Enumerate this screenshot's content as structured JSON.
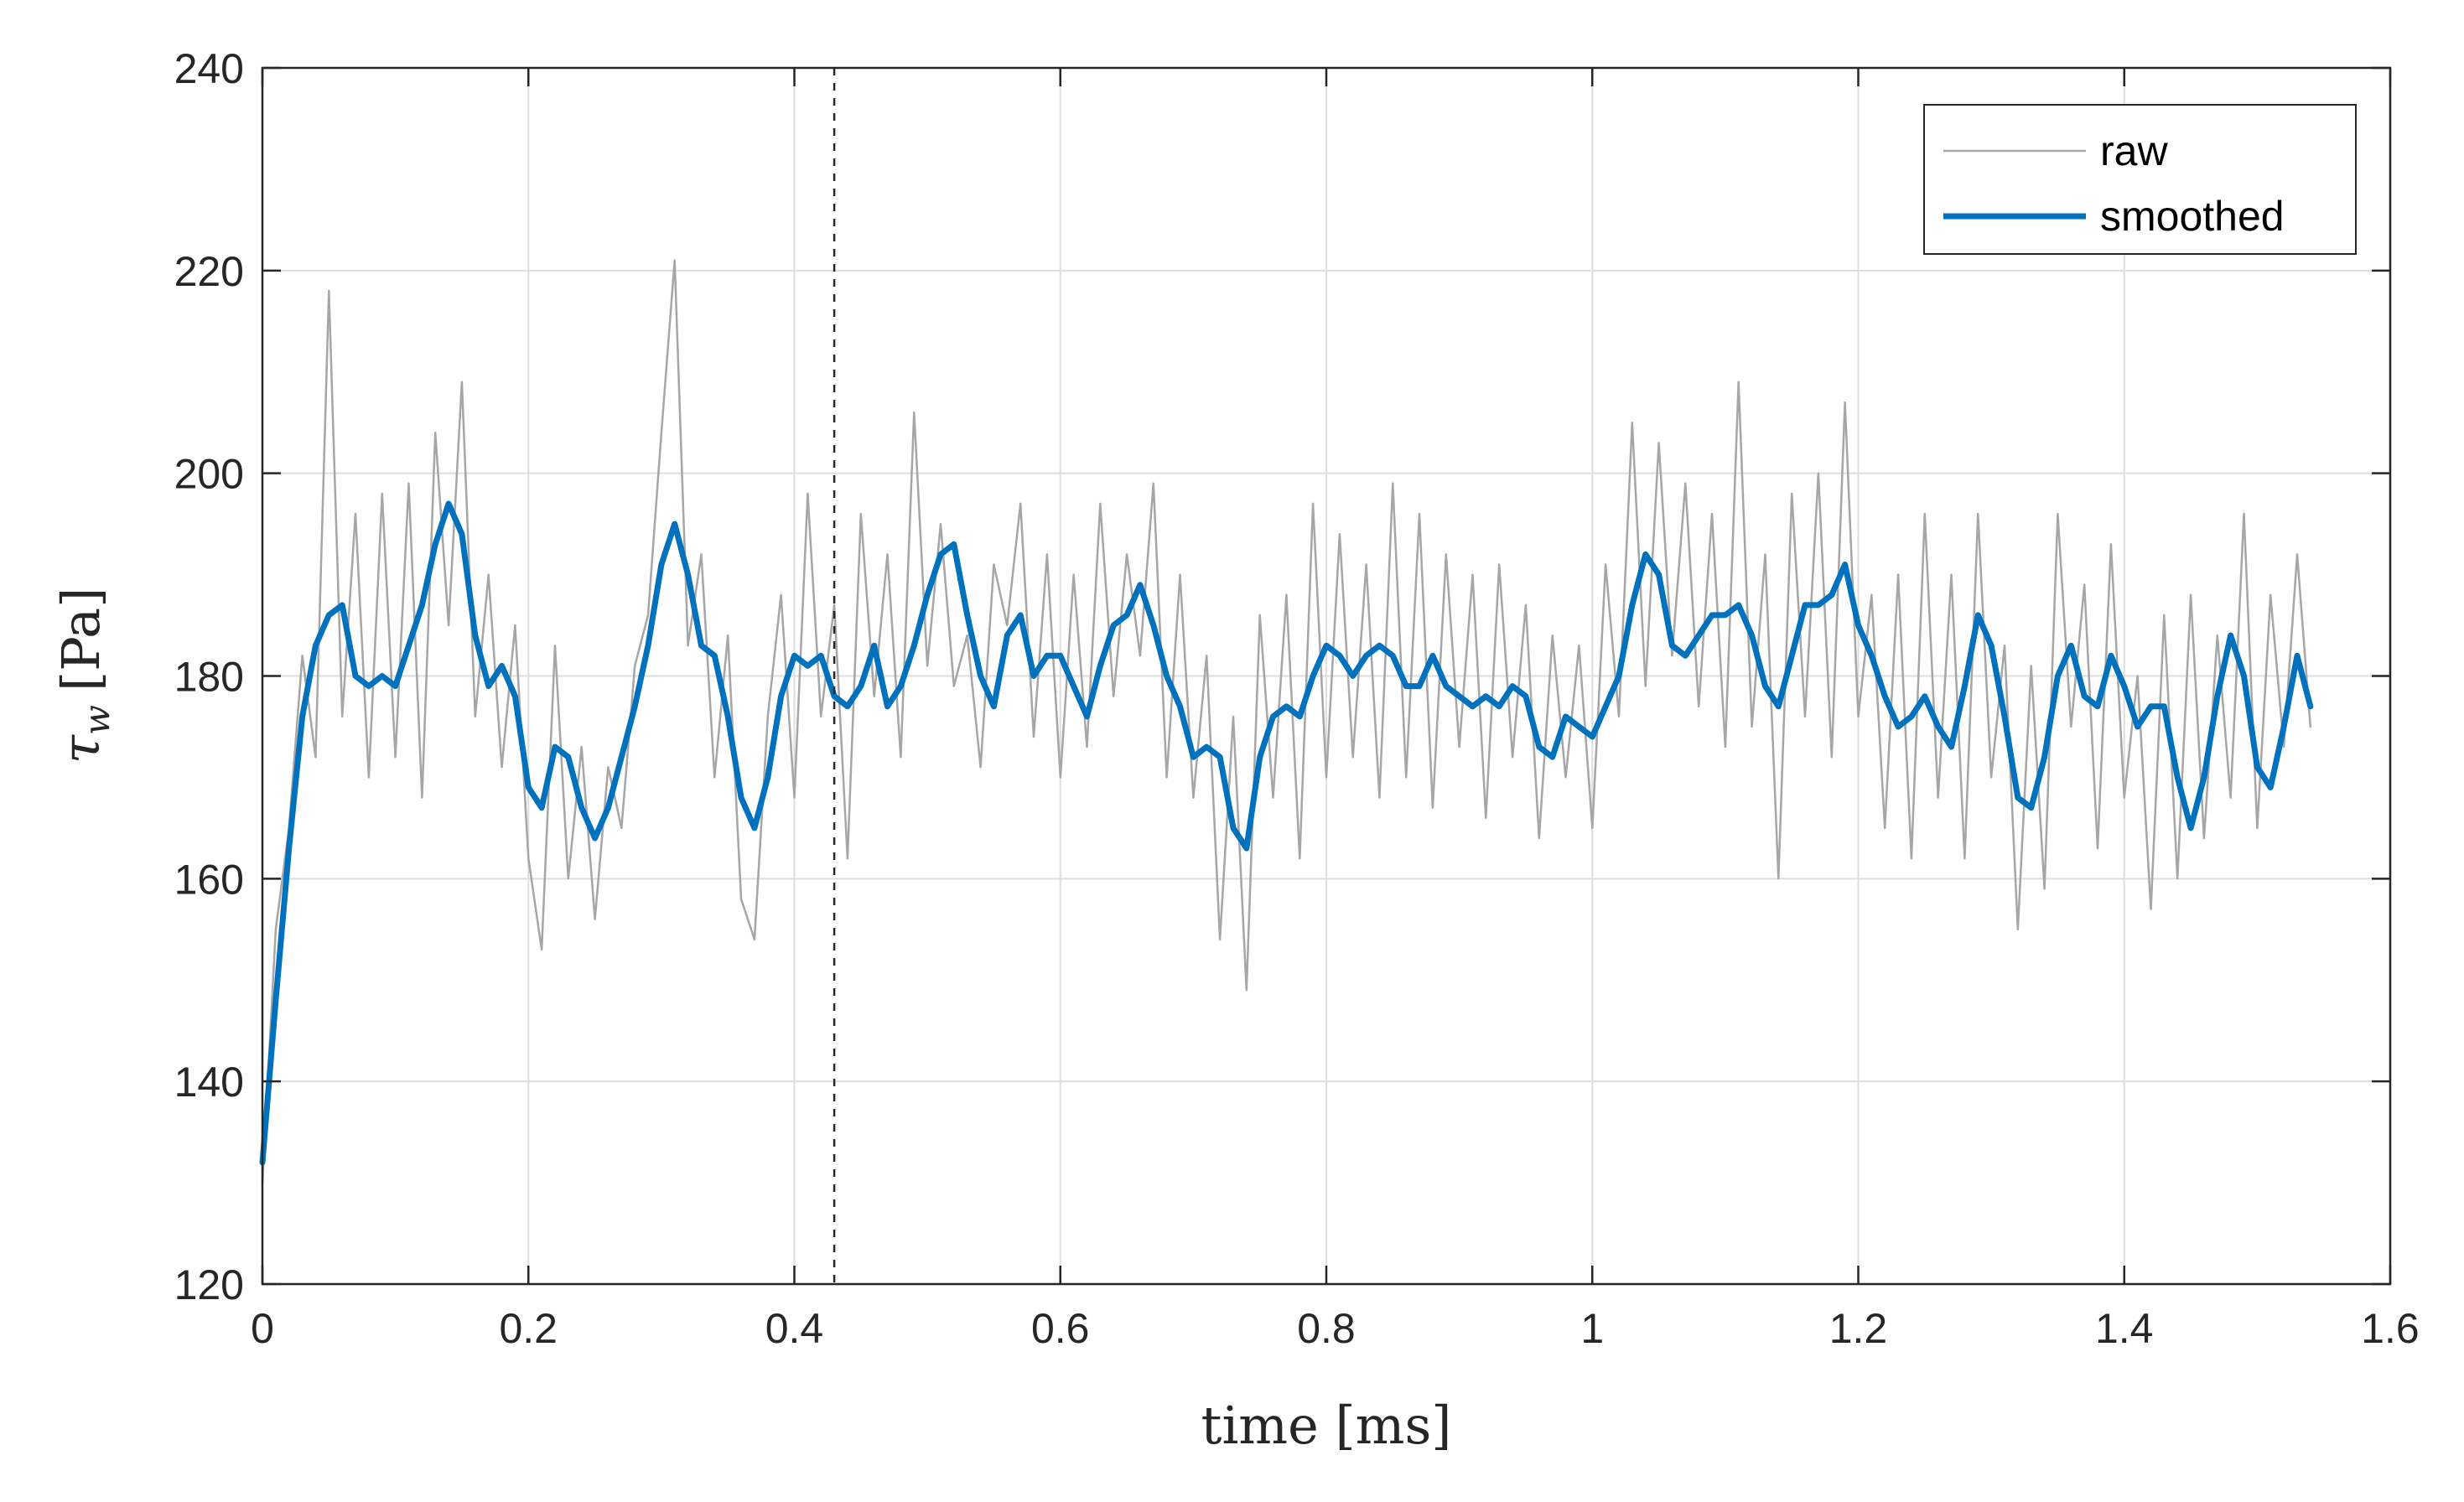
{
  "chart_data": {
    "type": "line",
    "xlabel": "time [ms]",
    "ylabel": "τ_w [Pa]",
    "ylabel_symbol": "τ",
    "ylabel_subscript": "w",
    "ylabel_unit": "[Pa]",
    "xlim": [
      0,
      1.6
    ],
    "ylim": [
      120,
      240
    ],
    "xticks": [
      0,
      0.2,
      0.4,
      0.6,
      0.8,
      1,
      1.2,
      1.4,
      1.6
    ],
    "xtick_labels": [
      "0",
      "0.2",
      "0.4",
      "0.6",
      "0.8",
      "1",
      "1.2",
      "1.4",
      "1.6"
    ],
    "yticks": [
      120,
      140,
      160,
      180,
      200,
      220,
      240
    ],
    "ytick_labels": [
      "120",
      "140",
      "160",
      "180",
      "200",
      "220",
      "240"
    ],
    "grid": true,
    "legend_position": "top-right",
    "vertical_marker": {
      "x": 0.43,
      "style": "dashed"
    },
    "colors": {
      "raw": "#a6a6a6",
      "smoothed": "#0072bd",
      "axes": "#262626",
      "grid": "#dedede"
    },
    "series": [
      {
        "name": "smoothed",
        "x": [
          0,
          0.01,
          0.02,
          0.03,
          0.04,
          0.05,
          0.06,
          0.07,
          0.08,
          0.09,
          0.1,
          0.11,
          0.12,
          0.13,
          0.14,
          0.15,
          0.16,
          0.17,
          0.18,
          0.19,
          0.2,
          0.21,
          0.22,
          0.23,
          0.24,
          0.25,
          0.26,
          0.27,
          0.28,
          0.29,
          0.3,
          0.31,
          0.32,
          0.33,
          0.34,
          0.35,
          0.36,
          0.37,
          0.38,
          0.39,
          0.4,
          0.41,
          0.42,
          0.43,
          0.44,
          0.45,
          0.46,
          0.47,
          0.48,
          0.49,
          0.5,
          0.51,
          0.52,
          0.53,
          0.54,
          0.55,
          0.56,
          0.57,
          0.58,
          0.59,
          0.6,
          0.61,
          0.62,
          0.63,
          0.64,
          0.65,
          0.66,
          0.67,
          0.68,
          0.69,
          0.7,
          0.71,
          0.72,
          0.73,
          0.74,
          0.75,
          0.76,
          0.77,
          0.78,
          0.79,
          0.8,
          0.81,
          0.82,
          0.83,
          0.84,
          0.85,
          0.86,
          0.87,
          0.88,
          0.89,
          0.9,
          0.91,
          0.92,
          0.93,
          0.94,
          0.95,
          0.96,
          0.97,
          0.98,
          0.99,
          1,
          1.01,
          1.02,
          1.03,
          1.04,
          1.05,
          1.06,
          1.07,
          1.08,
          1.09,
          1.1,
          1.11,
          1.12,
          1.13,
          1.14,
          1.15,
          1.16,
          1.17,
          1.18,
          1.19,
          1.2,
          1.21,
          1.22,
          1.23,
          1.24,
          1.25,
          1.26,
          1.27,
          1.28,
          1.29,
          1.3,
          1.31,
          1.32,
          1.33,
          1.34,
          1.35,
          1.36,
          1.37,
          1.38,
          1.39,
          1.4,
          1.41,
          1.42,
          1.43,
          1.44,
          1.45,
          1.46,
          1.47,
          1.48,
          1.49,
          1.5,
          1.51,
          1.52,
          1.53,
          1.54
        ],
        "values": [
          132,
          148,
          163,
          176,
          183,
          186,
          187,
          180,
          179,
          180,
          179,
          183,
          187,
          193,
          197,
          194,
          184,
          179,
          181,
          178,
          169,
          167,
          173,
          172,
          167,
          164,
          167,
          172,
          177,
          183,
          191,
          195,
          190,
          183,
          182,
          176,
          168,
          165,
          170,
          178,
          182,
          181,
          182,
          178,
          177,
          179,
          183,
          177,
          179,
          183,
          188,
          192,
          193,
          186,
          180,
          177,
          184,
          186,
          180,
          182,
          182,
          179,
          176,
          181,
          185,
          186,
          189,
          185,
          180,
          177,
          172,
          173,
          172,
          165,
          163,
          172,
          176,
          177,
          176,
          180,
          183,
          182,
          180,
          182,
          183,
          182,
          179,
          179,
          182,
          179,
          178,
          177,
          178,
          177,
          179,
          178,
          173,
          172,
          176,
          175,
          174,
          177,
          180,
          187,
          192,
          190,
          183,
          182,
          184,
          186,
          186,
          187,
          184,
          179,
          177,
          182,
          187,
          187,
          188,
          191,
          185,
          182,
          178,
          175,
          176,
          178,
          175,
          173,
          179,
          186,
          183,
          176,
          168,
          167,
          172,
          180,
          183,
          178,
          177,
          182,
          179,
          175,
          177,
          177,
          170,
          165,
          170,
          178,
          184,
          180,
          171,
          169,
          175,
          182,
          177
        ]
      },
      {
        "name": "raw",
        "x": [
          0,
          0.01,
          0.02,
          0.03,
          0.04,
          0.05,
          0.06,
          0.07,
          0.08,
          0.09,
          0.1,
          0.11,
          0.12,
          0.13,
          0.14,
          0.15,
          0.16,
          0.17,
          0.18,
          0.19,
          0.2,
          0.21,
          0.22,
          0.23,
          0.24,
          0.25,
          0.26,
          0.27,
          0.28,
          0.29,
          0.3,
          0.31,
          0.32,
          0.33,
          0.34,
          0.35,
          0.36,
          0.37,
          0.38,
          0.39,
          0.4,
          0.41,
          0.42,
          0.43,
          0.44,
          0.45,
          0.46,
          0.47,
          0.48,
          0.49,
          0.5,
          0.51,
          0.52,
          0.53,
          0.54,
          0.55,
          0.56,
          0.57,
          0.58,
          0.59,
          0.6,
          0.61,
          0.62,
          0.63,
          0.64,
          0.65,
          0.66,
          0.67,
          0.68,
          0.69,
          0.7,
          0.71,
          0.72,
          0.73,
          0.74,
          0.75,
          0.76,
          0.77,
          0.78,
          0.79,
          0.8,
          0.81,
          0.82,
          0.83,
          0.84,
          0.85,
          0.86,
          0.87,
          0.88,
          0.89,
          0.9,
          0.91,
          0.92,
          0.93,
          0.94,
          0.95,
          0.96,
          0.97,
          0.98,
          0.99,
          1,
          1.01,
          1.02,
          1.03,
          1.04,
          1.05,
          1.06,
          1.07,
          1.08,
          1.09,
          1.1,
          1.11,
          1.12,
          1.13,
          1.14,
          1.15,
          1.16,
          1.17,
          1.18,
          1.19,
          1.2,
          1.21,
          1.22,
          1.23,
          1.24,
          1.25,
          1.26,
          1.27,
          1.28,
          1.29,
          1.3,
          1.31,
          1.32,
          1.33,
          1.34,
          1.35,
          1.36,
          1.37,
          1.38,
          1.39,
          1.4,
          1.41,
          1.42,
          1.43,
          1.44,
          1.45,
          1.46,
          1.47,
          1.48,
          1.49,
          1.5,
          1.51,
          1.52,
          1.53,
          1.54
        ],
        "values": [
          130,
          155,
          165,
          182,
          172,
          218,
          176,
          196,
          170,
          198,
          172,
          199,
          168,
          204,
          185,
          209,
          176,
          190,
          171,
          185,
          162,
          153,
          183,
          160,
          173,
          156,
          171,
          165,
          181,
          186,
          204,
          221,
          183,
          192,
          170,
          184,
          158,
          154,
          176,
          188,
          168,
          198,
          176,
          187,
          162,
          196,
          178,
          192,
          172,
          206,
          181,
          195,
          179,
          184,
          171,
          191,
          185,
          197,
          174,
          192,
          170,
          190,
          173,
          197,
          178,
          192,
          182,
          199,
          170,
          190,
          168,
          182,
          154,
          176,
          149,
          186,
          168,
          188,
          162,
          197,
          170,
          194,
          172,
          191,
          168,
          199,
          170,
          196,
          167,
          192,
          173,
          190,
          166,
          191,
          172,
          187,
          164,
          184,
          170,
          183,
          165,
          191,
          176,
          205,
          179,
          203,
          182,
          199,
          177,
          196,
          173,
          209,
          175,
          192,
          160,
          198,
          176,
          200,
          172,
          207,
          176,
          188,
          165,
          190,
          162,
          196,
          168,
          190,
          162,
          196,
          170,
          183,
          155,
          181,
          159,
          196,
          175,
          189,
          163,
          193,
          168,
          180,
          157,
          186,
          160,
          188,
          164,
          184,
          168,
          196,
          165,
          188,
          173,
          192,
          175
        ]
      }
    ]
  },
  "legend": {
    "items": [
      {
        "label": "raw"
      },
      {
        "label": "smoothed"
      }
    ]
  }
}
